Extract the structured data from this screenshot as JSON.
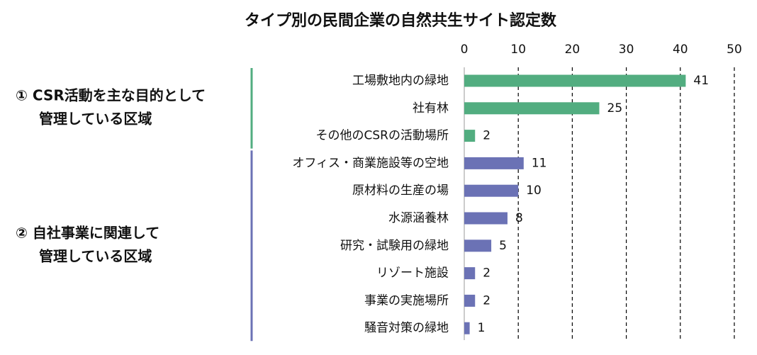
{
  "chart_data": {
    "type": "bar",
    "orientation": "horizontal",
    "title": "タイプ別の民間企業の自然共生サイト認定数",
    "xlim": [
      0,
      50
    ],
    "xticks": [
      0,
      10,
      20,
      30,
      40,
      50
    ],
    "grid": true,
    "groups": [
      {
        "label": [
          "① CSR活動を主な目的として",
          "管理している区域"
        ],
        "color": "#52ad80",
        "categories": [
          "工場敷地内の緑地",
          "社有林",
          "その他のCSRの活動場所"
        ],
        "values": [
          41,
          25,
          2
        ]
      },
      {
        "label": [
          "② 自社事業に関連して",
          "管理している区域"
        ],
        "color": "#6b72b5",
        "categories": [
          "オフィス・商業施設等の空地",
          "原材料の生産の場",
          "水源涵養林",
          "研究・試験用の緑地",
          "リゾート施設",
          "事業の実施場所",
          "騒音対策の緑地"
        ],
        "values": [
          11,
          10,
          8,
          5,
          2,
          2,
          1
        ]
      }
    ]
  }
}
